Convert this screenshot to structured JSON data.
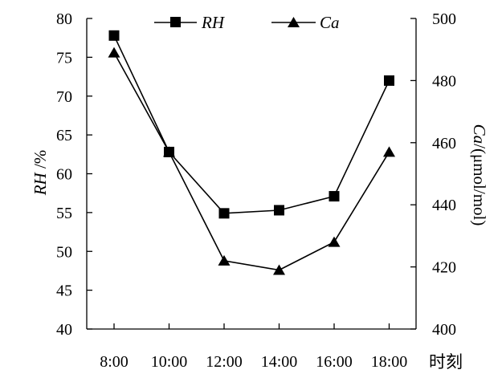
{
  "chart_data": {
    "type": "line",
    "categories": [
      "8:00",
      "10:00",
      "12:00",
      "14:00",
      "16:00",
      "18:00"
    ],
    "xlabel": "时刻",
    "y_left": {
      "label_italic": "RH",
      "label_rest": " /%",
      "ylim": [
        40,
        80
      ],
      "ticks": [
        40,
        45,
        50,
        55,
        60,
        65,
        70,
        75,
        80
      ]
    },
    "y_right": {
      "label_italic": "Ca",
      "label_rest": "/(μmol/mol)",
      "ylim": [
        400,
        500
      ],
      "ticks": [
        400,
        420,
        440,
        460,
        480,
        500
      ]
    },
    "series": [
      {
        "name": "RH",
        "axis": "left",
        "marker": "square",
        "values": [
          77.8,
          62.8,
          54.9,
          55.3,
          57.1,
          72.0
        ]
      },
      {
        "name": "Ca",
        "axis": "right",
        "marker": "triangle",
        "values": [
          489,
          457,
          422,
          419,
          428,
          457
        ]
      }
    ],
    "legend": "top-center",
    "grid": false,
    "colors": {
      "line": "#000000",
      "axis": "#000000",
      "background": "#ffffff"
    }
  }
}
